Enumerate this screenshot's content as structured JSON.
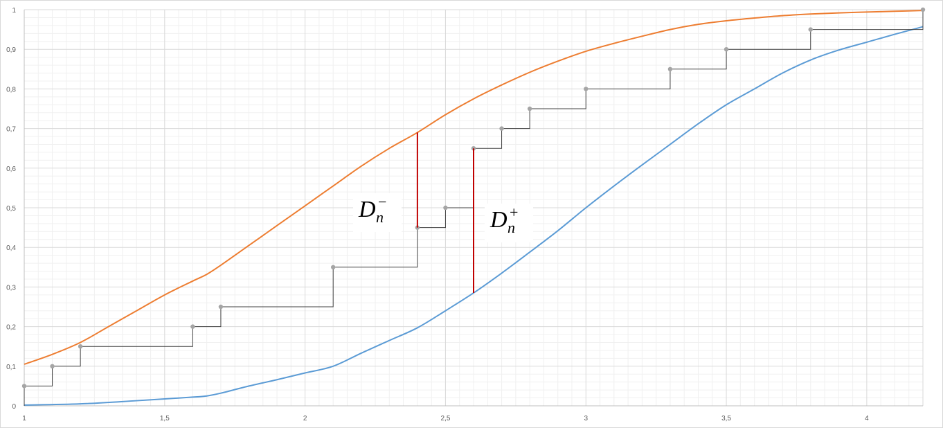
{
  "chart_data": {
    "type": "line",
    "title": "",
    "xlabel": "",
    "ylabel": "",
    "xlim": [
      1,
      4.2
    ],
    "ylim": [
      0,
      1
    ],
    "x_ticks": [
      "1",
      "1,5",
      "2",
      "2,5",
      "3",
      "3,5",
      "4"
    ],
    "y_ticks": [
      "0",
      "0,1",
      "0,2",
      "0,3",
      "0,4",
      "0,5",
      "0,6",
      "0,7",
      "0,8",
      "0,9",
      "1"
    ],
    "grid": true,
    "series": [
      {
        "color": "#ed7d31",
        "x": [
          1,
          1.1,
          1.2,
          1.3,
          1.4,
          1.5,
          1.6,
          1.65,
          1.7,
          1.8,
          1.9,
          2.0,
          2.1,
          2.2,
          2.3,
          2.4,
          2.5,
          2.6,
          2.7,
          2.8,
          2.9,
          3.0,
          3.1,
          3.2,
          3.3,
          3.4,
          3.5,
          3.6,
          3.7,
          3.8,
          3.9,
          4.0,
          4.1,
          4.2
        ],
        "y": [
          0.105,
          0.13,
          0.16,
          0.2,
          0.24,
          0.28,
          0.315,
          0.332,
          0.355,
          0.405,
          0.455,
          0.505,
          0.555,
          0.605,
          0.65,
          0.69,
          0.735,
          0.775,
          0.81,
          0.842,
          0.87,
          0.895,
          0.915,
          0.933,
          0.95,
          0.963,
          0.972,
          0.979,
          0.985,
          0.989,
          0.992,
          0.994,
          0.996,
          0.998
        ]
      },
      {
        "color": "#5b9bd5",
        "x": [
          1,
          1.2,
          1.4,
          1.6,
          1.65,
          1.7,
          1.8,
          1.9,
          2.0,
          2.1,
          2.2,
          2.3,
          2.4,
          2.5,
          2.6,
          2.7,
          2.8,
          2.9,
          3.0,
          3.1,
          3.2,
          3.3,
          3.4,
          3.5,
          3.6,
          3.7,
          3.8,
          3.9,
          4.0,
          4.1,
          4.2
        ],
        "y": [
          0.002,
          0.005,
          0.013,
          0.022,
          0.025,
          0.032,
          0.05,
          0.066,
          0.083,
          0.1,
          0.133,
          0.165,
          0.197,
          0.24,
          0.285,
          0.335,
          0.388,
          0.442,
          0.5,
          0.555,
          0.608,
          0.66,
          0.712,
          0.76,
          0.8,
          0.84,
          0.873,
          0.898,
          0.918,
          0.938,
          0.957
        ]
      },
      {
        "type": "step",
        "color": "#404040",
        "x": [
          1,
          1.1,
          1.2,
          1.6,
          1.7,
          2.1,
          2.4,
          2.5,
          2.6,
          2.7,
          2.8,
          3.0,
          3.3,
          3.5,
          3.8,
          4.2
        ],
        "y": [
          0.05,
          0.1,
          0.15,
          0.2,
          0.25,
          0.35,
          0.45,
          0.5,
          0.65,
          0.7,
          0.75,
          0.8,
          0.85,
          0.9,
          0.95,
          1.0
        ]
      }
    ],
    "annotations": [
      {
        "name": "D_n_minus",
        "x": 2.4,
        "y_from": 0.45,
        "y_to": 0.69,
        "color": "#c00000",
        "label_main": "D",
        "label_sub": "n",
        "label_sup": "−"
      },
      {
        "name": "D_n_plus",
        "x": 2.6,
        "y_from": 0.285,
        "y_to": 0.65,
        "color": "#c00000",
        "label_main": "D",
        "label_sub": "n",
        "label_sup": "+"
      }
    ]
  }
}
